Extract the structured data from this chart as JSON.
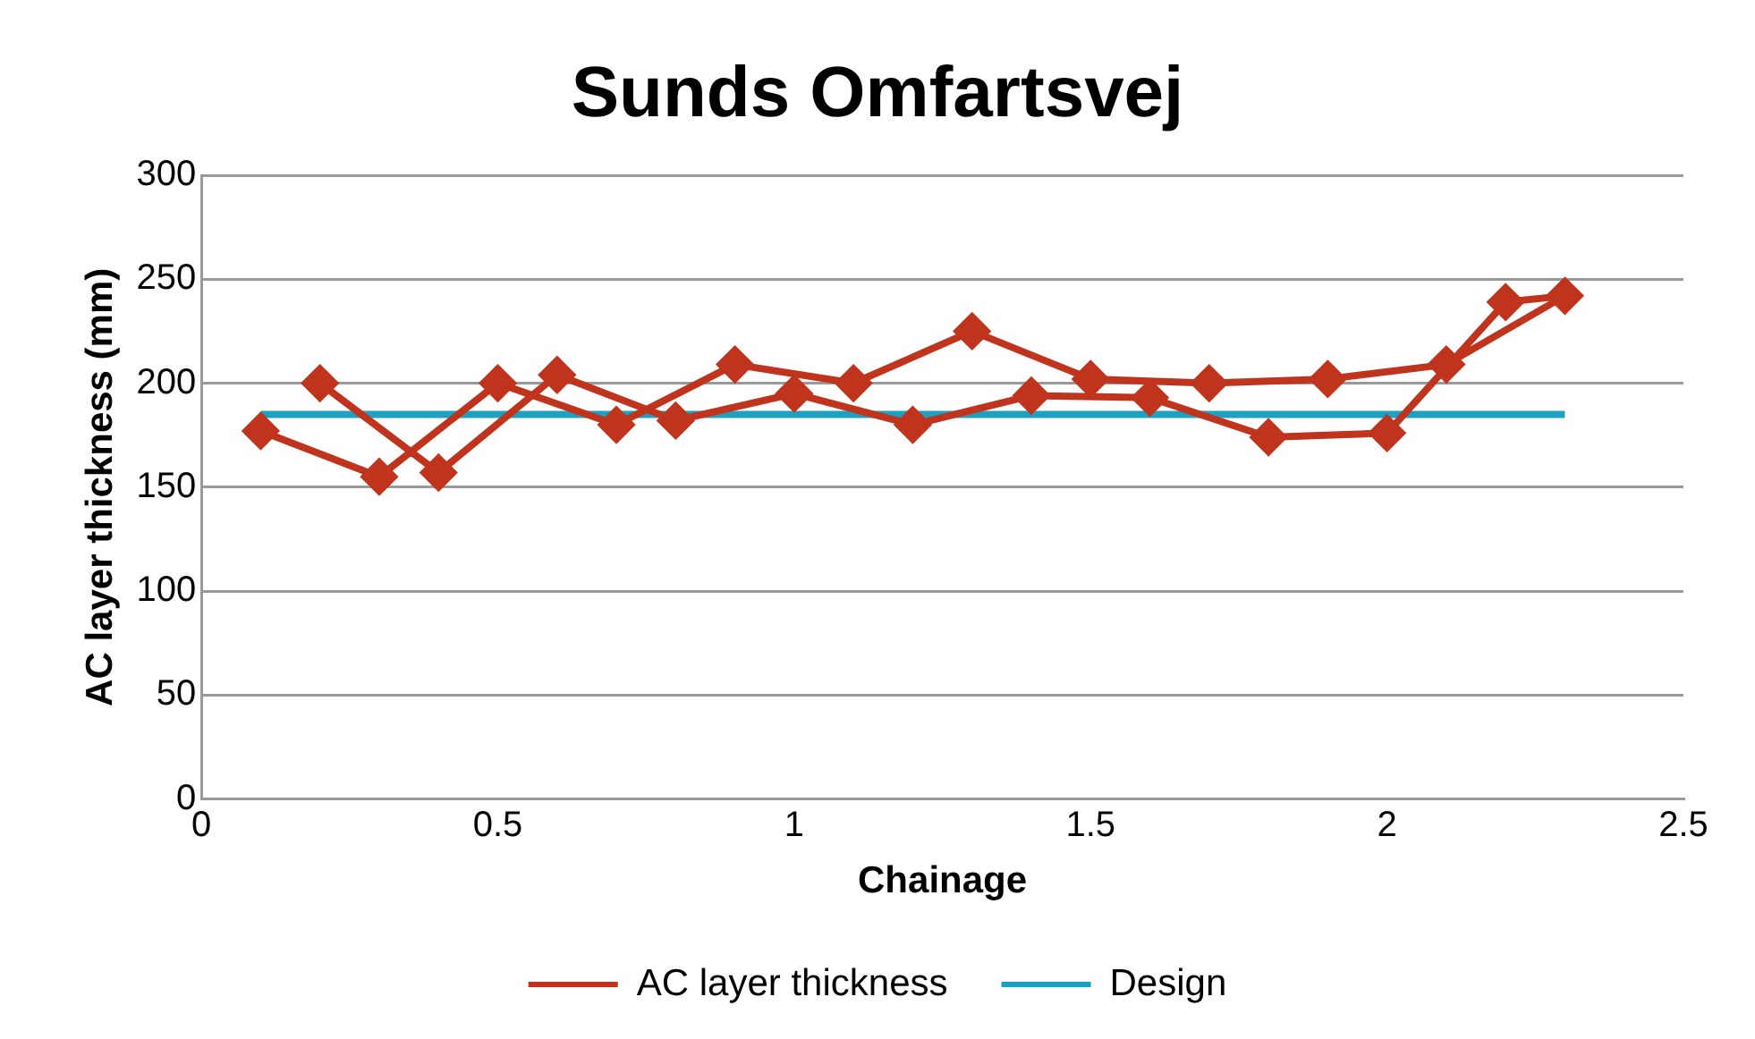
{
  "chart_data": {
    "type": "line",
    "title": "Sunds Omfartsvej",
    "xlabel": "Chainage",
    "ylabel": "AC layer thickness (mm)",
    "xlim": [
      0,
      2.5
    ],
    "xticks": [
      0,
      0.5,
      1,
      1.5,
      2,
      2.5
    ],
    "ylim": [
      0,
      300
    ],
    "yticks": [
      0,
      50,
      100,
      150,
      200,
      250,
      300
    ],
    "grid": "y",
    "legend": "bottom",
    "series": [
      {
        "name": "AC layer thickness",
        "color": "#c0341d",
        "marker": "diamond",
        "x": [
          0.1,
          0.3,
          0.5,
          0.7,
          0.9,
          1.1,
          1.3,
          1.5,
          1.7,
          1.9,
          2.1,
          2.3,
          2.2,
          2.0,
          1.8,
          1.6,
          1.4,
          1.2,
          1.0,
          0.8,
          0.6,
          0.4,
          0.2
        ],
        "values": [
          177,
          155,
          200,
          180,
          209,
          200,
          225,
          202,
          200,
          202,
          209,
          242,
          239,
          176,
          174,
          193,
          194,
          180,
          195,
          182,
          204,
          157,
          200
        ]
      },
      {
        "name": "Design",
        "color": "#1ea0c0",
        "marker": "none",
        "x": [
          0.1,
          2.3
        ],
        "values": [
          185,
          185
        ]
      }
    ]
  }
}
